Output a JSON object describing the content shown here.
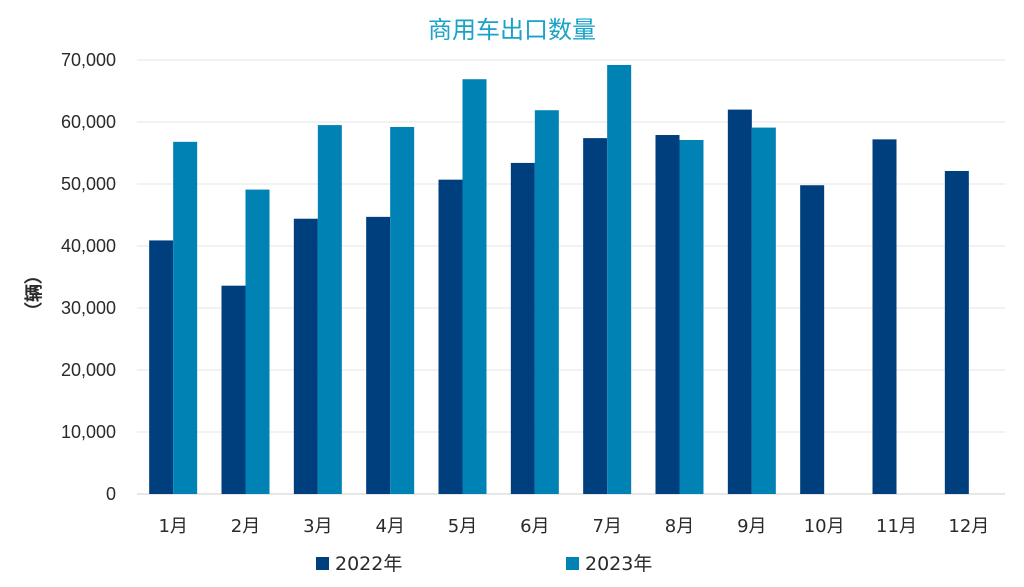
{
  "chart_data": {
    "type": "bar",
    "title": "商用车出口数量",
    "ylabel": "（辆）",
    "xlabel": "",
    "categories": [
      "1月",
      "2月",
      "3月",
      "4月",
      "5月",
      "6月",
      "7月",
      "8月",
      "9月",
      "10月",
      "11月",
      "12月"
    ],
    "series": [
      {
        "name": "2022年",
        "color": "#003f7d",
        "values": [
          40900,
          33600,
          44400,
          44700,
          50700,
          53400,
          57400,
          57900,
          62000,
          49800,
          57200,
          52100
        ]
      },
      {
        "name": "2023年",
        "color": "#0082b4",
        "values": [
          56800,
          49100,
          59500,
          59200,
          66900,
          61900,
          69200,
          57100,
          59100,
          null,
          null,
          null
        ]
      }
    ],
    "ylim": [
      0,
      70000
    ],
    "yticks": [
      "0",
      "10,000",
      "20,000",
      "30,000",
      "40,000",
      "50,000",
      "60,000",
      "70,000"
    ],
    "ytick_values": [
      0,
      10000,
      20000,
      30000,
      40000,
      50000,
      60000,
      70000
    ],
    "grid": true,
    "legend_position": "bottom"
  }
}
